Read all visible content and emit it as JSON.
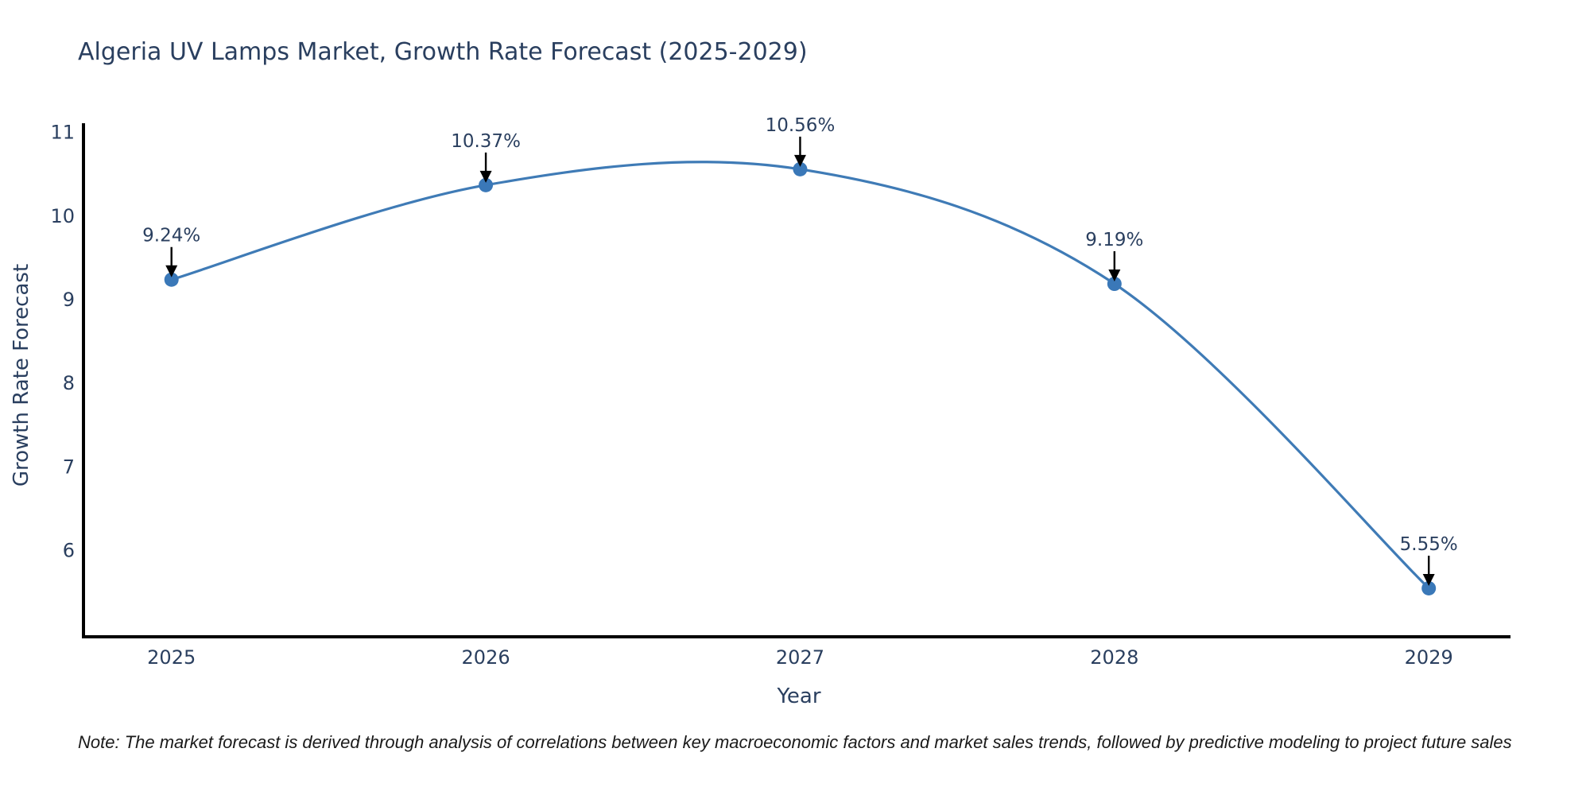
{
  "chart": {
    "note": "Note: The market forecast is derived through analysis of correlations between key macroeconomic factors and market sales trends, followed by predictive modeling to project future sales",
    "colors": {
      "line": "#3f7bb6",
      "marker": "#3a78b8",
      "axis_line": "#000000",
      "arrow": "#000000",
      "tick_text": "#2a3f5f",
      "title_text": "#2a3f5f",
      "annotation_text": "#2a3f5f"
    }
  },
  "chart_data": {
    "type": "line",
    "line_shape": "spline",
    "title": "Algeria UV Lamps Market, Growth Rate Forecast (2025-2029)",
    "xlabel": "Year",
    "ylabel": "Growth Rate Forecast",
    "x": [
      2025,
      2026,
      2027,
      2028,
      2029
    ],
    "values": [
      9.24,
      10.37,
      10.56,
      9.19,
      5.55
    ],
    "point_labels": [
      "9.24%",
      "10.37%",
      "10.56%",
      "9.19%",
      "5.55%"
    ],
    "xticks": [
      2025,
      2026,
      2027,
      2028,
      2029
    ],
    "yticks": [
      6,
      7,
      8,
      9,
      10,
      11
    ],
    "xlim": [
      2024.72,
      2029.26
    ],
    "ylim": [
      4.97,
      11.11
    ],
    "grid": false,
    "legend": false,
    "annotation_style": "value label with downward black arrow above each point"
  }
}
